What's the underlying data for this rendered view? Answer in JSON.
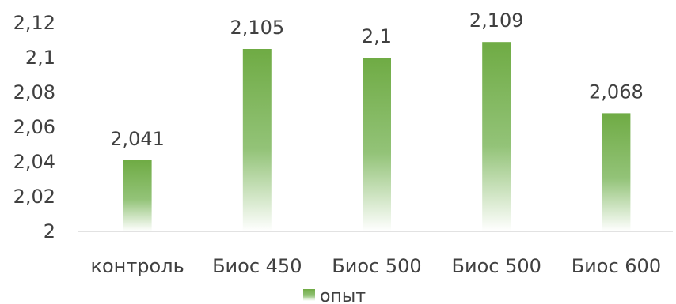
{
  "chart_data": {
    "type": "bar",
    "categories": [
      "контроль",
      "Биос 450",
      "Биос 500",
      "Биос 500",
      "Биос 600"
    ],
    "series": [
      {
        "name": "опыт",
        "values": [
          2.041,
          2.105,
          2.1,
          2.109,
          2.068
        ]
      }
    ],
    "data_labels": [
      "2,041",
      "2,105",
      "2,1",
      "2,109",
      "2,068"
    ],
    "ytick_labels": [
      "2",
      "2,02",
      "2,04",
      "2,06",
      "2,08",
      "2,1",
      "2,12"
    ],
    "ylim": [
      2,
      2.12
    ],
    "ytick_step": 0.02,
    "grid": false,
    "legend_position": "bottom",
    "bar_color": "#70ad47",
    "title": "",
    "xlabel": "",
    "ylabel": ""
  }
}
